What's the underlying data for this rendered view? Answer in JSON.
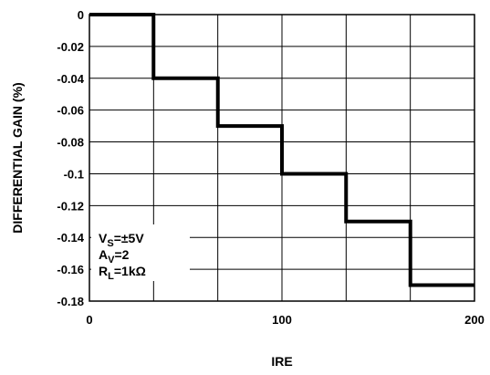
{
  "chart_data": {
    "type": "line",
    "step": true,
    "xlabel": "IRE",
    "ylabel": "DIFFERENTIAL GAIN (%)",
    "xlim": [
      0,
      200
    ],
    "ylim": [
      -0.18,
      0
    ],
    "grid": true,
    "x_ticks": [
      "0",
      "100",
      "200"
    ],
    "y_ticks": [
      "0",
      "-0.02",
      "-0.04",
      "-0.06",
      "-0.08",
      "-0.1",
      "-0.12",
      "-0.14",
      "-0.16",
      "-0.18"
    ],
    "series": [
      {
        "x": [
          0,
          33.3,
          66.7,
          100,
          133.3,
          166.7,
          200
        ],
        "y": [
          0,
          -0.04,
          -0.07,
          -0.1,
          -0.13,
          -0.17,
          -0.17
        ]
      }
    ],
    "annotations": {
      "vs": {
        "main": "V",
        "sub": "S",
        "rest": "=±5V"
      },
      "av": {
        "main": "A",
        "sub": "V",
        "rest": "=2"
      },
      "rl": {
        "main": "R",
        "sub": "L",
        "rest": "=1kΩ"
      }
    }
  }
}
